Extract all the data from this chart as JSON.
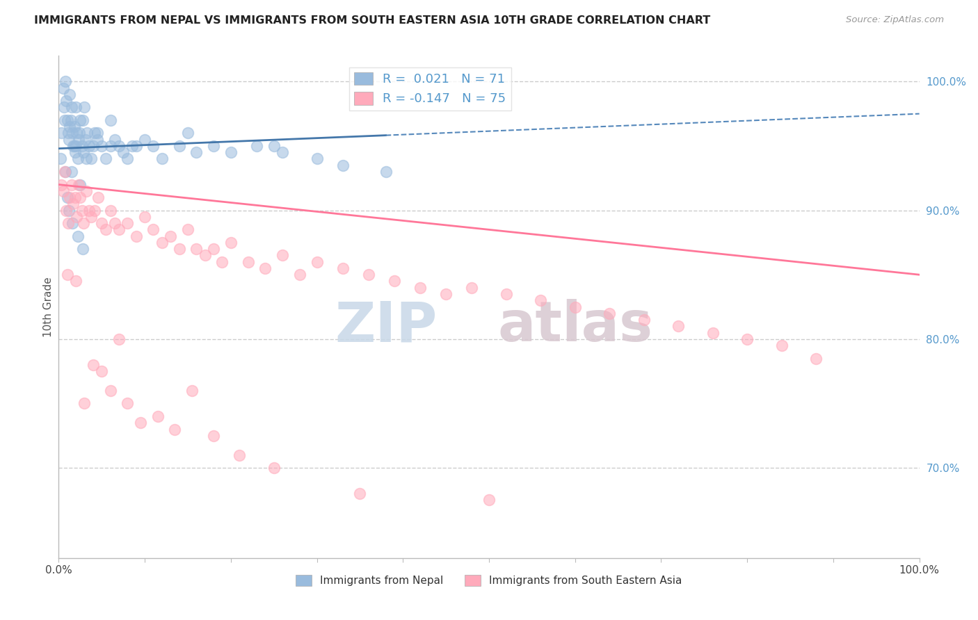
{
  "title": "IMMIGRANTS FROM NEPAL VS IMMIGRANTS FROM SOUTH EASTERN ASIA 10TH GRADE CORRELATION CHART",
  "source": "Source: ZipAtlas.com",
  "ylabel": "10th Grade",
  "right_ytick_values": [
    70.0,
    80.0,
    90.0,
    100.0
  ],
  "right_ytick_labels": [
    "70.0%",
    "80.0%",
    "90.0%",
    "100.0%"
  ],
  "legend_blue_r": "0.021",
  "legend_blue_n": "71",
  "legend_pink_r": "-0.147",
  "legend_pink_n": "75",
  "legend_label_blue": "Immigrants from Nepal",
  "legend_label_pink": "Immigrants from South Eastern Asia",
  "blue_scatter_color": "#99BBDD",
  "pink_scatter_color": "#FFAABB",
  "blue_line_color": "#5588BB",
  "pink_line_color": "#FF7799",
  "blue_line_solid_color": "#4477AA",
  "background_color": "#FFFFFF",
  "grid_color": "#CCCCCC",
  "right_axis_color": "#5599CC",
  "watermark_zip_color": "#C8D8E8",
  "watermark_atlas_color": "#D8C8D0",
  "nepal_x": [
    0.2,
    0.3,
    0.5,
    0.6,
    0.7,
    0.8,
    0.9,
    1.0,
    1.1,
    1.2,
    1.3,
    1.4,
    1.5,
    1.6,
    1.7,
    1.8,
    1.9,
    2.0,
    2.1,
    2.2,
    2.3,
    2.4,
    2.5,
    2.7,
    2.9,
    3.1,
    3.3,
    3.5,
    3.8,
    4.0,
    4.2,
    4.5,
    5.0,
    5.5,
    6.0,
    6.5,
    7.0,
    7.5,
    8.0,
    9.0,
    10.0,
    11.0,
    12.0,
    14.0,
    16.0,
    18.0,
    20.0,
    23.0,
    26.0,
    30.0,
    33.0,
    38.0,
    2.8,
    3.2,
    1.3,
    1.5,
    2.0,
    1.8,
    2.5,
    3.0,
    1.0,
    0.8,
    1.2,
    1.6,
    2.2,
    2.8,
    4.5,
    6.0,
    8.5,
    15.0,
    25.0
  ],
  "nepal_y": [
    94.0,
    96.0,
    99.5,
    98.0,
    97.0,
    100.0,
    98.5,
    97.0,
    96.0,
    95.5,
    96.5,
    97.0,
    98.0,
    96.0,
    95.0,
    96.5,
    94.5,
    95.0,
    96.0,
    94.0,
    95.5,
    96.0,
    97.0,
    95.0,
    94.5,
    95.5,
    96.0,
    95.0,
    94.0,
    95.0,
    96.0,
    95.5,
    95.0,
    94.0,
    95.0,
    95.5,
    95.0,
    94.5,
    94.0,
    95.0,
    95.5,
    95.0,
    94.0,
    95.0,
    94.5,
    95.0,
    94.5,
    95.0,
    94.5,
    94.0,
    93.5,
    93.0,
    97.0,
    94.0,
    99.0,
    93.0,
    98.0,
    95.0,
    92.0,
    98.0,
    91.0,
    93.0,
    90.0,
    89.0,
    88.0,
    87.0,
    96.0,
    97.0,
    95.0,
    96.0,
    95.0
  ],
  "sea_x": [
    0.3,
    0.5,
    0.7,
    0.9,
    1.1,
    1.3,
    1.5,
    1.7,
    1.9,
    2.1,
    2.3,
    2.5,
    2.7,
    2.9,
    3.2,
    3.5,
    3.8,
    4.2,
    4.6,
    5.0,
    5.5,
    6.0,
    6.5,
    7.0,
    8.0,
    9.0,
    10.0,
    11.0,
    12.0,
    13.0,
    14.0,
    15.0,
    16.0,
    17.0,
    18.0,
    19.0,
    20.0,
    22.0,
    24.0,
    26.0,
    28.0,
    30.0,
    33.0,
    36.0,
    39.0,
    42.0,
    45.0,
    48.0,
    52.0,
    56.0,
    60.0,
    64.0,
    68.0,
    72.0,
    76.0,
    80.0,
    84.0,
    88.0,
    1.0,
    2.0,
    3.0,
    4.0,
    5.0,
    6.0,
    7.0,
    8.0,
    9.5,
    11.5,
    13.5,
    15.5,
    18.0,
    21.0,
    25.0,
    35.0,
    50.0
  ],
  "sea_y": [
    92.0,
    91.5,
    93.0,
    90.0,
    89.0,
    91.0,
    92.0,
    90.5,
    91.0,
    89.5,
    92.0,
    91.0,
    90.0,
    89.0,
    91.5,
    90.0,
    89.5,
    90.0,
    91.0,
    89.0,
    88.5,
    90.0,
    89.0,
    88.5,
    89.0,
    88.0,
    89.5,
    88.5,
    87.5,
    88.0,
    87.0,
    88.5,
    87.0,
    86.5,
    87.0,
    86.0,
    87.5,
    86.0,
    85.5,
    86.5,
    85.0,
    86.0,
    85.5,
    85.0,
    84.5,
    84.0,
    83.5,
    84.0,
    83.5,
    83.0,
    82.5,
    82.0,
    81.5,
    81.0,
    80.5,
    80.0,
    79.5,
    78.5,
    85.0,
    84.5,
    75.0,
    78.0,
    77.5,
    76.0,
    80.0,
    75.0,
    73.5,
    74.0,
    73.0,
    76.0,
    72.5,
    71.0,
    70.0,
    68.0,
    67.5
  ],
  "blue_trend_x": [
    0,
    100
  ],
  "blue_trend_y_start": 94.8,
  "blue_trend_y_end": 97.5,
  "pink_trend_x": [
    0,
    100
  ],
  "pink_trend_y_start": 92.0,
  "pink_trend_y_end": 85.0,
  "blue_solid_x_end": 38.0,
  "ylim_min": 63.0,
  "ylim_max": 102.0,
  "xlim_min": 0.0,
  "xlim_max": 100.0
}
